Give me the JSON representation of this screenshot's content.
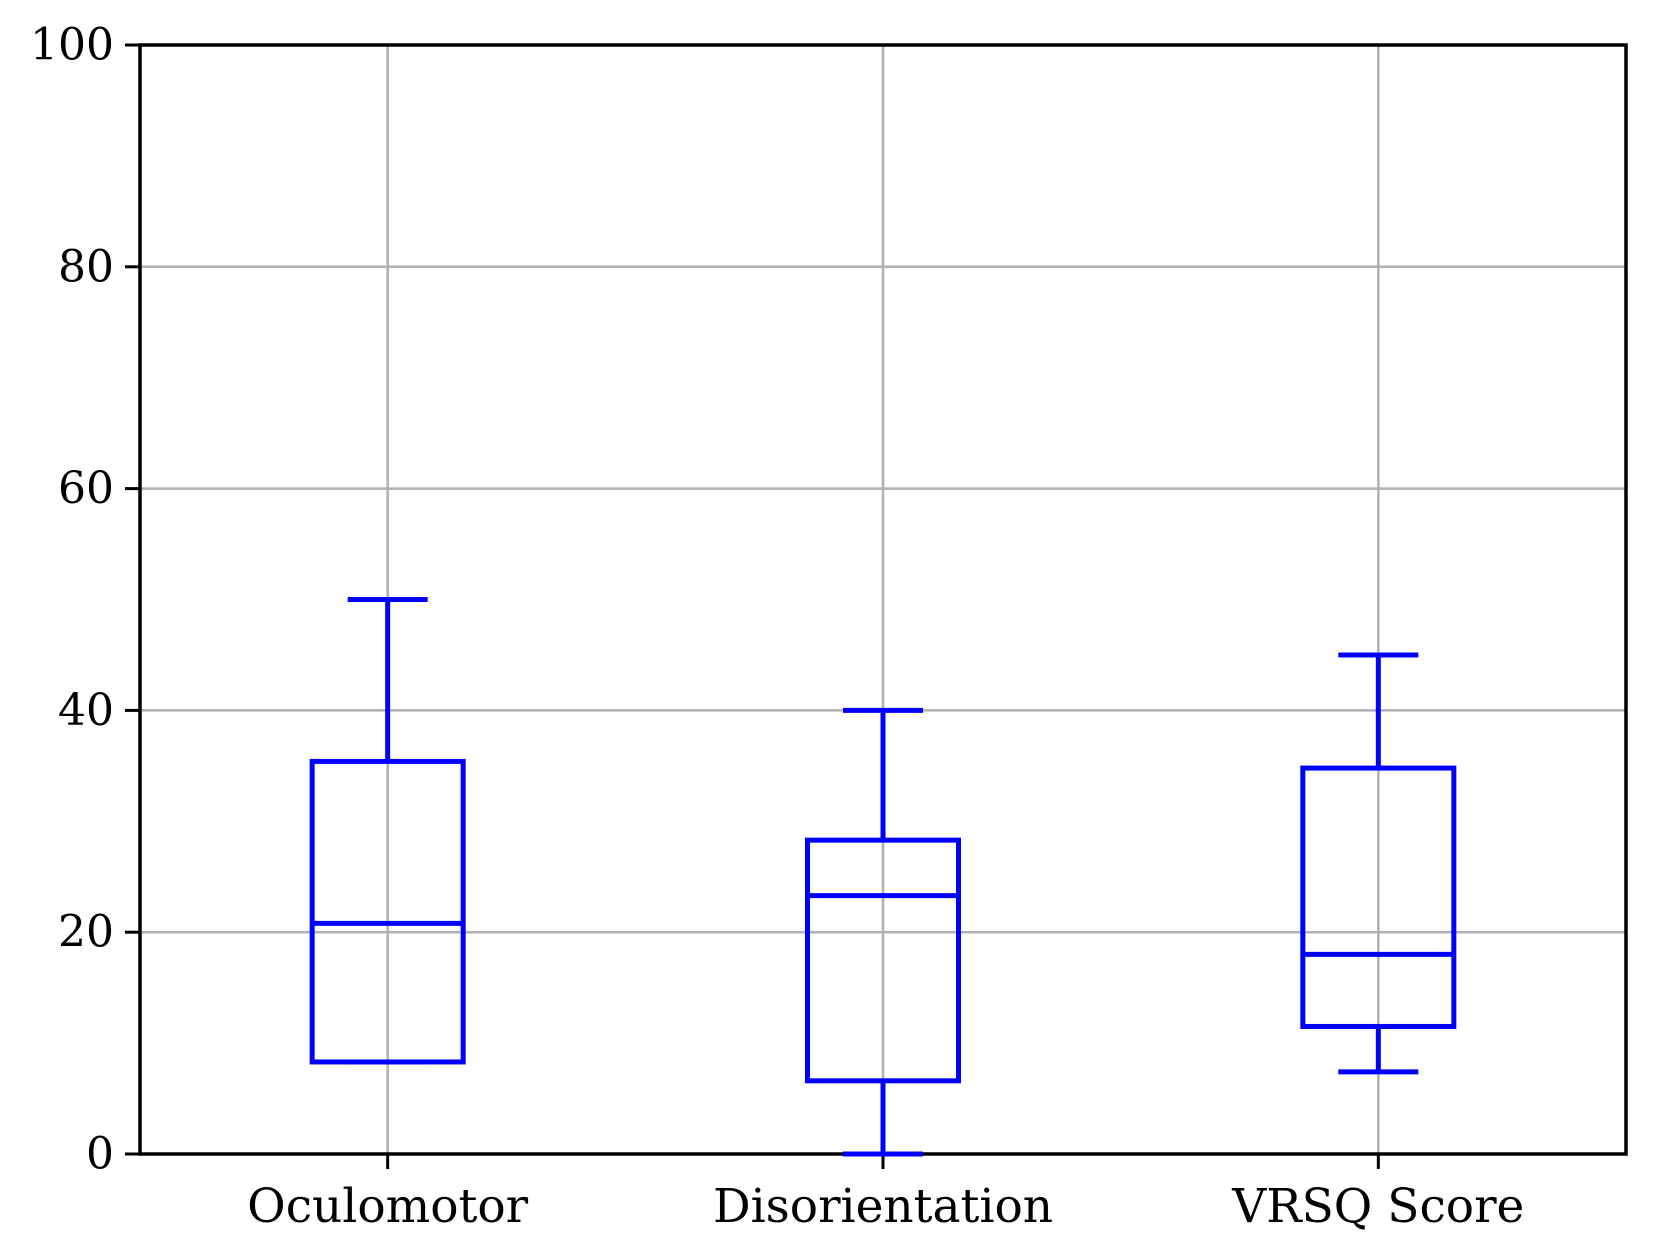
{
  "chart_data": {
    "type": "boxplot",
    "title": "",
    "xlabel": "",
    "ylabel": "",
    "categories": [
      "Oculomotor",
      "Disorientation",
      "VRSQ Score"
    ],
    "y_ticks": [
      0,
      20,
      40,
      60,
      80,
      100
    ],
    "ylim": [
      0,
      100
    ],
    "grid": true,
    "legend": "none",
    "colors": {
      "box": "#0000ff",
      "grid": "#b0b0b0",
      "spine": "#000000",
      "background": "#ffffff"
    },
    "series": [
      {
        "name": "Oculomotor",
        "min": 8.3,
        "q1": 8.3,
        "median": 20.8,
        "q3": 35.4,
        "max": 50
      },
      {
        "name": "Disorientation",
        "min": 0,
        "q1": 6.6,
        "median": 23.3,
        "q3": 28.3,
        "max": 40
      },
      {
        "name": "VRSQ Score",
        "min": 7.4,
        "q1": 11.5,
        "median": 18.0,
        "q3": 34.8,
        "max": 45
      }
    ]
  }
}
